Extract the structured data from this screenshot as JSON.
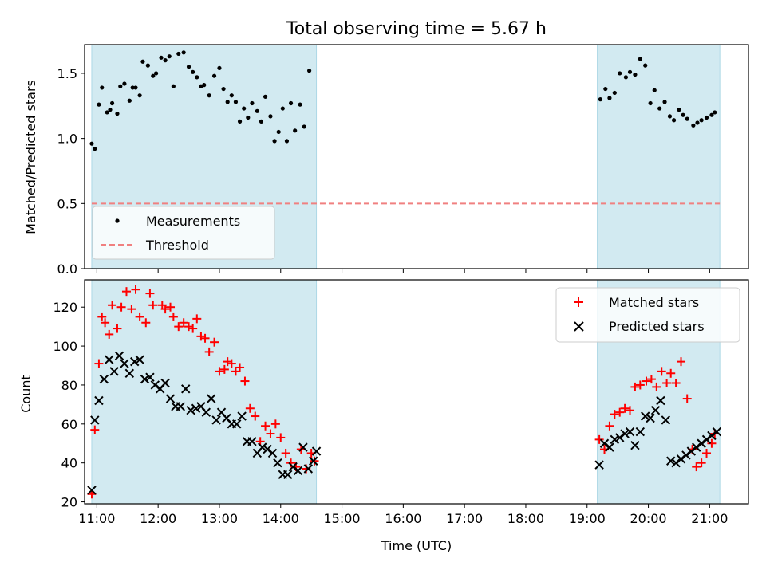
{
  "chart_data": [
    {
      "type": "scatter",
      "title": "Total observing time = 5.67 h",
      "xlabel": "",
      "ylabel": "Matched/Predicted stars",
      "xlim": [
        "10:48",
        "21:38"
      ],
      "ylim": [
        0,
        1.72
      ],
      "yticks": [
        "0.0",
        "0.5",
        "1.0",
        "1.5"
      ],
      "shaded_ranges": [
        [
          "10:55",
          "14:35"
        ],
        [
          "19:10",
          "21:10"
        ]
      ],
      "shade_color": "#add8e6",
      "grid": false,
      "legend_location": "lower-left",
      "series": [
        {
          "name": "Measurements",
          "color": "#000000",
          "marker": "dot",
          "x": [
            "10:55",
            "10:58",
            "11:02",
            "11:05",
            "11:10",
            "11:13",
            "11:15",
            "11:20",
            "11:23",
            "11:27",
            "11:32",
            "11:35",
            "11:38",
            "11:42",
            "11:45",
            "11:50",
            "11:55",
            "11:58",
            "12:03",
            "12:07",
            "12:11",
            "12:15",
            "12:20",
            "12:25",
            "12:30",
            "12:34",
            "12:38",
            "12:42",
            "12:45",
            "12:50",
            "12:55",
            "13:00",
            "13:04",
            "13:08",
            "13:12",
            "13:16",
            "13:20",
            "13:24",
            "13:28",
            "13:32",
            "13:37",
            "13:41",
            "13:45",
            "13:50",
            "13:54",
            "13:58",
            "14:02",
            "14:06",
            "14:10",
            "14:14",
            "14:19",
            "14:23",
            "14:28",
            "19:13",
            "19:18",
            "19:22",
            "19:27",
            "19:32",
            "19:38",
            "19:42",
            "19:47",
            "19:52",
            "19:57",
            "20:02",
            "20:06",
            "20:11",
            "20:16",
            "20:21",
            "20:25",
            "20:30",
            "20:34",
            "20:38",
            "20:44",
            "20:48",
            "20:52",
            "20:57",
            "21:02",
            "21:05"
          ],
          "y": [
            0.96,
            0.92,
            1.26,
            1.39,
            1.2,
            1.22,
            1.27,
            1.19,
            1.4,
            1.42,
            1.29,
            1.39,
            1.39,
            1.33,
            1.59,
            1.56,
            1.48,
            1.5,
            1.62,
            1.6,
            1.63,
            1.4,
            1.65,
            1.66,
            1.55,
            1.51,
            1.47,
            1.4,
            1.41,
            1.33,
            1.48,
            1.54,
            1.38,
            1.28,
            1.33,
            1.28,
            1.13,
            1.23,
            1.16,
            1.27,
            1.21,
            1.13,
            1.32,
            1.17,
            0.98,
            1.05,
            1.23,
            0.98,
            1.27,
            1.06,
            1.26,
            1.09,
            1.52,
            1.3,
            1.38,
            1.31,
            1.35,
            1.5,
            1.47,
            1.51,
            1.49,
            1.61,
            1.56,
            1.27,
            1.37,
            1.23,
            1.28,
            1.17,
            1.14,
            1.22,
            1.18,
            1.15,
            1.1,
            1.12,
            1.14,
            1.16,
            1.18,
            1.2
          ]
        },
        {
          "name": "Threshold",
          "color": "#f08080",
          "style": "dashed",
          "x": [
            "10:55",
            "21:10"
          ],
          "y": [
            0.5,
            0.5
          ]
        }
      ]
    },
    {
      "type": "scatter",
      "title": "",
      "xlabel": "Time (UTC)",
      "ylabel": "Count",
      "xlim": [
        "10:48",
        "21:38"
      ],
      "ylim": [
        19,
        134
      ],
      "yticks": [
        "20",
        "40",
        "60",
        "80",
        "100",
        "120"
      ],
      "xticks": [
        "11:00",
        "12:00",
        "13:00",
        "14:00",
        "15:00",
        "16:00",
        "17:00",
        "18:00",
        "19:00",
        "20:00",
        "21:00"
      ],
      "shaded_ranges": [
        [
          "10:55",
          "14:35"
        ],
        [
          "19:10",
          "21:10"
        ]
      ],
      "shade_color": "#add8e6",
      "grid": false,
      "legend_location": "top-right",
      "series": [
        {
          "name": "Matched stars",
          "color": "#ff0000",
          "marker": "plus",
          "x": [
            "10:55",
            "10:58",
            "11:02",
            "11:05",
            "11:08",
            "11:12",
            "11:15",
            "11:20",
            "11:24",
            "11:29",
            "11:34",
            "11:38",
            "11:42",
            "11:48",
            "11:52",
            "11:55",
            "12:04",
            "12:07",
            "12:12",
            "12:15",
            "12:20",
            "12:25",
            "12:30",
            "12:34",
            "12:38",
            "12:42",
            "12:46",
            "12:50",
            "12:55",
            "13:00",
            "13:05",
            "13:08",
            "13:12",
            "13:16",
            "13:20",
            "13:25",
            "13:30",
            "13:35",
            "13:40",
            "13:45",
            "13:50",
            "13:55",
            "14:00",
            "14:05",
            "14:10",
            "14:15",
            "14:20",
            "14:25",
            "14:30",
            "14:33",
            "19:12",
            "19:17",
            "19:22",
            "19:27",
            "19:32",
            "19:37",
            "19:42",
            "19:47",
            "19:52",
            "19:58",
            "20:03",
            "20:08",
            "20:13",
            "20:18",
            "20:22",
            "20:27",
            "20:32",
            "20:38",
            "20:43",
            "20:47",
            "20:52",
            "20:57",
            "21:02",
            "21:05"
          ],
          "y": [
            24,
            57,
            91,
            115,
            112,
            106,
            121,
            109,
            120,
            128,
            119,
            129,
            115,
            112,
            127,
            121,
            121,
            119,
            120,
            115,
            110,
            112,
            110,
            109,
            114,
            105,
            104,
            97,
            102,
            87,
            88,
            92,
            91,
            87,
            89,
            82,
            68,
            64,
            51,
            59,
            55,
            60,
            53,
            45,
            40,
            38,
            47,
            37,
            45,
            41,
            52,
            47,
            59,
            65,
            66,
            68,
            67,
            79,
            80,
            82,
            83,
            79,
            87,
            81,
            86,
            81,
            92,
            73,
            47,
            38,
            40,
            45,
            50,
            55
          ],
          "_note": ""
        },
        {
          "name": "Predicted stars",
          "color": "#000000",
          "marker": "x",
          "x": [
            "10:55",
            "10:58",
            "11:02",
            "11:07",
            "11:12",
            "11:17",
            "11:22",
            "11:27",
            "11:32",
            "11:37",
            "11:42",
            "11:47",
            "11:52",
            "11:57",
            "12:02",
            "12:07",
            "12:12",
            "12:17",
            "12:22",
            "12:27",
            "12:32",
            "12:37",
            "12:42",
            "12:47",
            "12:52",
            "12:57",
            "13:02",
            "13:07",
            "13:12",
            "13:17",
            "13:22",
            "13:27",
            "13:32",
            "13:37",
            "13:42",
            "13:47",
            "13:52",
            "13:57",
            "14:02",
            "14:07",
            "14:12",
            "14:17",
            "14:22",
            "14:27",
            "14:32",
            "14:35",
            "19:12",
            "19:17",
            "19:22",
            "19:27",
            "19:32",
            "19:37",
            "19:42",
            "19:47",
            "19:52",
            "19:57",
            "20:02",
            "20:07",
            "20:12",
            "20:17",
            "20:22",
            "20:27",
            "20:32",
            "20:37",
            "20:42",
            "20:47",
            "20:52",
            "20:57",
            "21:02",
            "21:07"
          ],
          "y": [
            26,
            62,
            72,
            83,
            93,
            87,
            95,
            91,
            86,
            92,
            93,
            83,
            84,
            80,
            78,
            81,
            73,
            69,
            69,
            78,
            67,
            68,
            69,
            66,
            73,
            62,
            66,
            63,
            60,
            60,
            64,
            51,
            51,
            45,
            48,
            47,
            45,
            40,
            34,
            34,
            38,
            36,
            48,
            37,
            41,
            46,
            39,
            50,
            48,
            52,
            53,
            55,
            56,
            49,
            56,
            64,
            63,
            67,
            72,
            62,
            41,
            40,
            42,
            44,
            46,
            48,
            50,
            52,
            54,
            56
          ]
        }
      ]
    }
  ]
}
